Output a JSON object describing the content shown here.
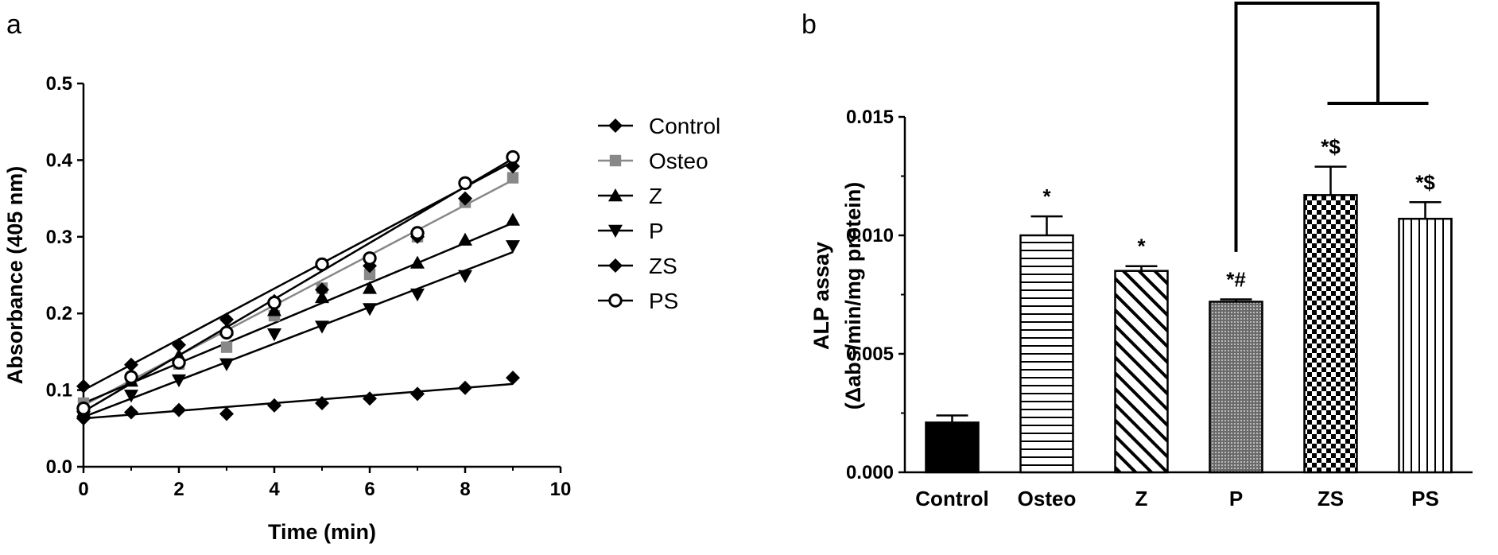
{
  "chart_data": [
    {
      "panel": "a",
      "type": "line",
      "xlabel": "Time (min)",
      "ylabel": "Absorbance (405 nm)",
      "xlim": [
        0,
        10
      ],
      "ylim": [
        0.0,
        0.5
      ],
      "xticks": [
        "0",
        "2",
        "4",
        "6",
        "8",
        "10"
      ],
      "yticks": [
        "0.0",
        "0.1",
        "0.2",
        "0.3",
        "0.4",
        "0.5"
      ],
      "legend_position": "right",
      "x": [
        0,
        1,
        2,
        3,
        4,
        5,
        6,
        7,
        8,
        9
      ],
      "series": [
        {
          "name": "Control",
          "marker": "diamond",
          "color": "#000000",
          "values": [
            0.063,
            0.071,
            0.074,
            0.069,
            0.08,
            0.083,
            0.089,
            0.095,
            0.103,
            0.116
          ],
          "fit": [
            0.063,
            0.108
          ]
        },
        {
          "name": "Osteo",
          "marker": "square",
          "color": "#888888",
          "values": [
            0.083,
            0.115,
            0.134,
            0.156,
            0.197,
            0.233,
            0.251,
            0.3,
            0.345,
            0.377
          ],
          "fit": [
            0.08,
            0.374
          ]
        },
        {
          "name": "Z",
          "marker": "triangle-up",
          "color": "#000000",
          "values": [
            0.072,
            0.112,
            0.145,
            0.179,
            0.204,
            0.221,
            0.233,
            0.266,
            0.296,
            0.322
          ],
          "fit": [
            0.083,
            0.318
          ]
        },
        {
          "name": "P",
          "marker": "triangle-down",
          "color": "#000000",
          "values": [
            0.065,
            0.093,
            0.113,
            0.134,
            0.173,
            0.183,
            0.206,
            0.225,
            0.249,
            0.288
          ],
          "fit": [
            0.065,
            0.28
          ]
        },
        {
          "name": "ZS",
          "marker": "diamond",
          "color": "#000000",
          "values": [
            0.105,
            0.133,
            0.159,
            0.192,
            0.216,
            0.231,
            0.262,
            0.3,
            0.35,
            0.392
          ],
          "fit": [
            0.1,
            0.398
          ]
        },
        {
          "name": "PS",
          "marker": "circle-open",
          "color": "#000000",
          "values": [
            0.076,
            0.117,
            0.136,
            0.175,
            0.214,
            0.264,
            0.272,
            0.305,
            0.37,
            0.404
          ],
          "fit": [
            0.072,
            0.402
          ]
        }
      ]
    },
    {
      "panel": "b",
      "type": "bar",
      "ylabel": "ALP assay",
      "ylabel2": "(Δabs/min/mg protein)",
      "ylim": [
        0.0,
        0.015
      ],
      "yticks": [
        "0.000",
        "0.005",
        "0.010",
        "0.015"
      ],
      "categories": [
        "Control",
        "Osteo",
        "Z",
        "P",
        "ZS",
        "PS"
      ],
      "values": [
        0.0021,
        0.01,
        0.0085,
        0.0072,
        0.0117,
        0.0107
      ],
      "errors": [
        0.0003,
        0.0008,
        0.0002,
        0.0001,
        0.0012,
        0.0007
      ],
      "patterns": [
        "solid",
        "horizontal",
        "diagonal",
        "dots",
        "checker",
        "vertical"
      ],
      "annotations": [
        "",
        "*",
        "*",
        "*#",
        "*$",
        "*$"
      ],
      "bracket": {
        "from": "P",
        "to": [
          "ZS",
          "PS"
        ]
      }
    }
  ],
  "panel_labels": {
    "a": "a",
    "b": "b"
  }
}
